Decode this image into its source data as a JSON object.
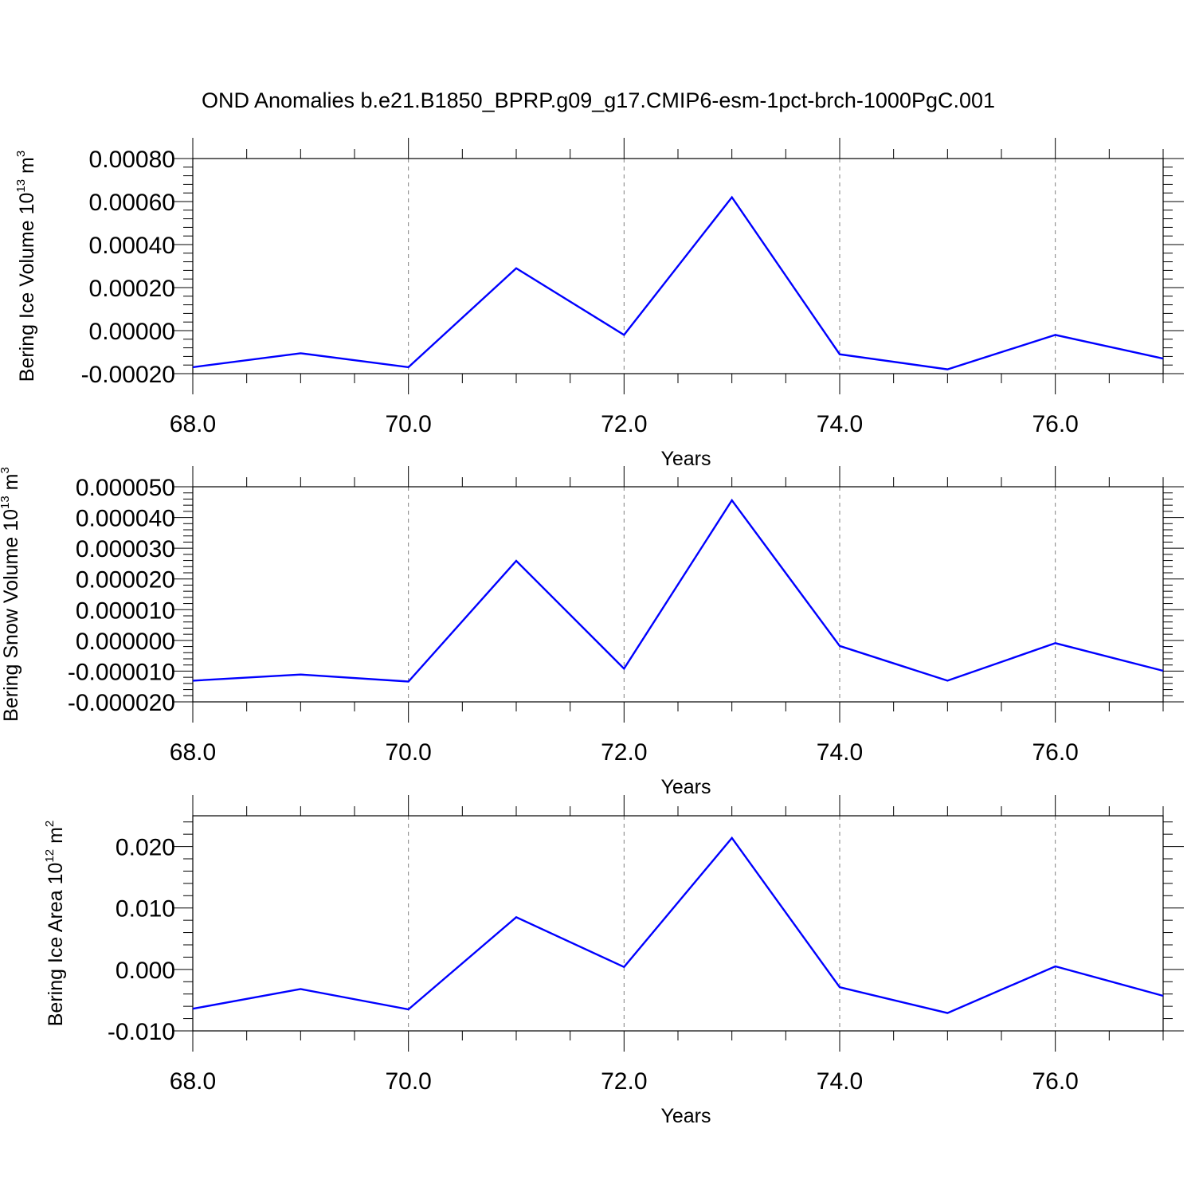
{
  "figure": {
    "title": "OND Anomalies b.e21.B1850_BPRP.g09_g17.CMIP6-esm-1pct-brch-1000PgC.001"
  },
  "colors": {
    "line": "#0000ff",
    "axis": "#000000",
    "grid": "#808080"
  },
  "chart_data": [
    {
      "type": "line",
      "xlabel": "Years",
      "ylabel": {
        "text": "Bering Ice Volume 10",
        "sup": "13",
        "unit": " m",
        "unit_sup": "3"
      },
      "xlim": [
        68,
        77
      ],
      "ylim": [
        -0.0002,
        0.0008
      ],
      "x_ticks": [
        "68.0",
        "70.0",
        "72.0",
        "74.0",
        "76.0"
      ],
      "y_ticks": [
        "-0.00020",
        "0.00000",
        "0.00020",
        "0.00040",
        "0.00060",
        "0.00080"
      ],
      "grid": "vertical dashed",
      "series": [
        {
          "x": [
            68,
            69,
            70,
            71,
            72,
            73,
            74,
            75,
            76,
            77
          ],
          "values": [
            -0.00017,
            -0.000105,
            -0.00017,
            0.00029,
            -2e-05,
            0.00062,
            -0.00011,
            -0.00018,
            -2e-05,
            -0.00013
          ]
        }
      ]
    },
    {
      "type": "line",
      "xlabel": "Years",
      "ylabel": {
        "text": "Bering Snow Volume 10",
        "sup": "13",
        "unit": " m",
        "unit_sup": "3"
      },
      "xlim": [
        68,
        77
      ],
      "ylim": [
        -2e-05,
        5e-05
      ],
      "x_ticks": [
        "68.0",
        "70.0",
        "72.0",
        "74.0",
        "76.0"
      ],
      "y_ticks": [
        "-0.000020",
        "-0.000010",
        "0.000000",
        "0.000010",
        "0.000020",
        "0.000030",
        "0.000040",
        "0.000050"
      ],
      "grid": "vertical dashed",
      "series": [
        {
          "x": [
            68,
            69,
            70,
            71,
            72,
            73,
            74,
            75,
            76,
            77
          ],
          "values": [
            -1.31e-05,
            -1.11e-05,
            -1.34e-05,
            2.59e-05,
            -9.2e-06,
            4.56e-05,
            -1.8e-06,
            -1.31e-05,
            -9e-07,
            -9.9e-06
          ]
        }
      ]
    },
    {
      "type": "line",
      "xlabel": "Years",
      "ylabel": {
        "text": "Bering Ice Area 10",
        "sup": "12",
        "unit": " m",
        "unit_sup": "2"
      },
      "xlim": [
        68,
        77
      ],
      "ylim": [
        -0.01,
        0.025
      ],
      "x_ticks": [
        "68.0",
        "70.0",
        "72.0",
        "74.0",
        "76.0"
      ],
      "y_ticks": [
        "-0.010",
        "0.000",
        "0.010",
        "0.020"
      ],
      "grid": "vertical dashed",
      "series": [
        {
          "x": [
            68,
            69,
            70,
            71,
            72,
            73,
            74,
            75,
            76,
            77
          ],
          "values": [
            -0.0064,
            -0.0032,
            -0.0065,
            0.0085,
            0.0004,
            0.0214,
            -0.0029,
            -0.0071,
            0.0005,
            -0.0043
          ]
        }
      ]
    }
  ]
}
